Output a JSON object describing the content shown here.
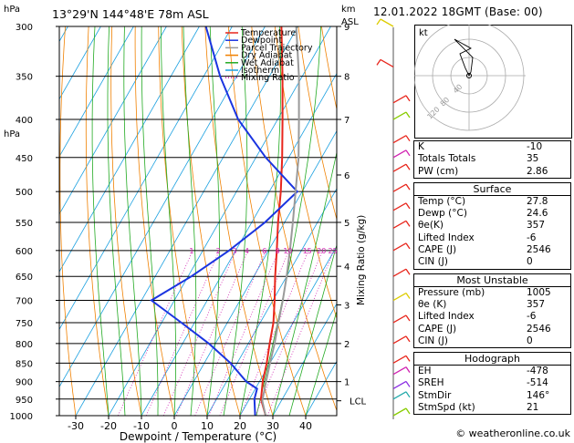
{
  "header": {
    "location": "13°29'N  144°48'E  78m  ASL",
    "datetime": "12.01.2022  18GMT  (Base: 00)",
    "p_unit": "hPa",
    "km_unit": "km",
    "asl": "ASL",
    "kt": "kt"
  },
  "chart_data": {
    "type": "line",
    "title": "",
    "xlabel": "Dewpoint / Temperature (°C)",
    "ylabel": "hPa",
    "y2label": "Mixing Ratio (g/kg)",
    "xlim": [
      -40,
      40
    ],
    "ylim": [
      1000,
      300
    ],
    "y_log_scale": true,
    "skew": true,
    "pressure_levels": [
      "300",
      "350",
      "400",
      "450",
      "500",
      "550",
      "600",
      "650",
      "700",
      "750",
      "800",
      "850",
      "900",
      "950",
      "1000"
    ],
    "x_ticks": [
      "-30",
      "-20",
      "-10",
      "0",
      "10",
      "20",
      "30",
      "40"
    ],
    "km_ticks": [
      {
        "km": "9",
        "p": 300
      },
      {
        "km": "8",
        "p": 350
      },
      {
        "km": "7",
        "p": 400
      },
      {
        "km": "6",
        "p": 475
      },
      {
        "km": "5",
        "p": 550
      },
      {
        "km": "4",
        "p": 630
      },
      {
        "km": "3",
        "p": 710
      },
      {
        "km": "2",
        "p": 800
      },
      {
        "km": "1",
        "p": 900
      }
    ],
    "lcl": {
      "label": "LCL",
      "p": 955
    },
    "mixing_ratio_labels": [
      "1",
      "2",
      "3",
      "4",
      "6",
      "8",
      "10",
      "15",
      "20",
      "25"
    ],
    "legend": {
      "placement": "top-left",
      "entries": [
        {
          "name": "Temperature",
          "color": "#e8261c",
          "style": "solid"
        },
        {
          "name": "Dewpoint",
          "color": "#1a34e0",
          "style": "solid"
        },
        {
          "name": "Parcel Trajectory",
          "color": "#9a9a9a",
          "style": "solid"
        },
        {
          "name": "Dry Adiabat",
          "color": "#f08000",
          "style": "solid"
        },
        {
          "name": "Wet Adiabat",
          "color": "#22aa22",
          "style": "solid"
        },
        {
          "name": "Isotherm",
          "color": "#1aa0e0",
          "style": "solid"
        },
        {
          "name": "Mixing Ratio",
          "color": "#d020b0",
          "style": "dotted"
        }
      ]
    },
    "series": [
      {
        "name": "Temperature",
        "color": "#e8261c",
        "points": [
          [
            1000,
            27.8
          ],
          [
            950,
            23.5
          ],
          [
            900,
            21
          ],
          [
            850,
            19
          ],
          [
            800,
            16.5
          ],
          [
            750,
            14
          ],
          [
            700,
            10.5
          ],
          [
            650,
            6.5
          ],
          [
            600,
            2.5
          ],
          [
            550,
            -2
          ],
          [
            500,
            -6.5
          ],
          [
            450,
            -12
          ],
          [
            400,
            -18.5
          ],
          [
            350,
            -26
          ],
          [
            300,
            -35
          ]
        ]
      },
      {
        "name": "Dewpoint",
        "color": "#1a34e0",
        "points": [
          [
            1000,
            24.6
          ],
          [
            950,
            21.5
          ],
          [
            920,
            20.5
          ],
          [
            900,
            16
          ],
          [
            850,
            8
          ],
          [
            800,
            -2
          ],
          [
            750,
            -14
          ],
          [
            700,
            -27
          ],
          [
            650,
            -19
          ],
          [
            600,
            -12
          ],
          [
            550,
            -6
          ],
          [
            500,
            -1.5
          ],
          [
            450,
            -17
          ],
          [
            400,
            -32
          ],
          [
            350,
            -45
          ],
          [
            300,
            -58
          ]
        ]
      },
      {
        "name": "Parcel Trajectory",
        "color": "#9a9a9a",
        "points": [
          [
            1000,
            27.8
          ],
          [
            955,
            24.2
          ],
          [
            900,
            22
          ],
          [
            850,
            20
          ],
          [
            800,
            18
          ],
          [
            750,
            15.5
          ],
          [
            700,
            13
          ],
          [
            650,
            10
          ],
          [
            600,
            6.5
          ],
          [
            550,
            2.5
          ],
          [
            500,
            -2
          ],
          [
            450,
            -7
          ],
          [
            400,
            -13.5
          ],
          [
            350,
            -21
          ],
          [
            300,
            -30.5
          ]
        ]
      }
    ]
  },
  "hodograph": {
    "unit": "kt",
    "ring_labels": [
      "40",
      "80",
      "120"
    ],
    "direction": 146,
    "speed": 21
  },
  "stats": {
    "top": [
      {
        "k": "K",
        "v": "-10"
      },
      {
        "k": "Totals Totals",
        "v": "35"
      },
      {
        "k": "PW (cm)",
        "v": "2.86"
      }
    ],
    "surface": {
      "title": "Surface",
      "rows": [
        {
          "k": "Temp (°C)",
          "v": "27.8"
        },
        {
          "k": "Dewp (°C)",
          "v": "24.6"
        },
        {
          "k": "θe(K)",
          "v": "357"
        },
        {
          "k": "Lifted Index",
          "v": "-6"
        },
        {
          "k": "CAPE (J)",
          "v": "2546"
        },
        {
          "k": "CIN (J)",
          "v": "0"
        }
      ]
    },
    "most_unstable": {
      "title": "Most Unstable",
      "rows": [
        {
          "k": "Pressure (mb)",
          "v": "1005"
        },
        {
          "k": "θe (K)",
          "v": "357"
        },
        {
          "k": "Lifted Index",
          "v": "-6"
        },
        {
          "k": "CAPE (J)",
          "v": "2546"
        },
        {
          "k": "CIN (J)",
          "v": "0"
        }
      ]
    },
    "hodograph": {
      "title": "Hodograph",
      "rows": [
        {
          "k": "EH",
          "v": "-478"
        },
        {
          "k": "SREH",
          "v": "-514"
        },
        {
          "k": "StmDir",
          "v": "146°"
        },
        {
          "k": "StmSpd (kt)",
          "v": "21"
        }
      ]
    }
  },
  "copyright": "© weatheronline.co.uk"
}
